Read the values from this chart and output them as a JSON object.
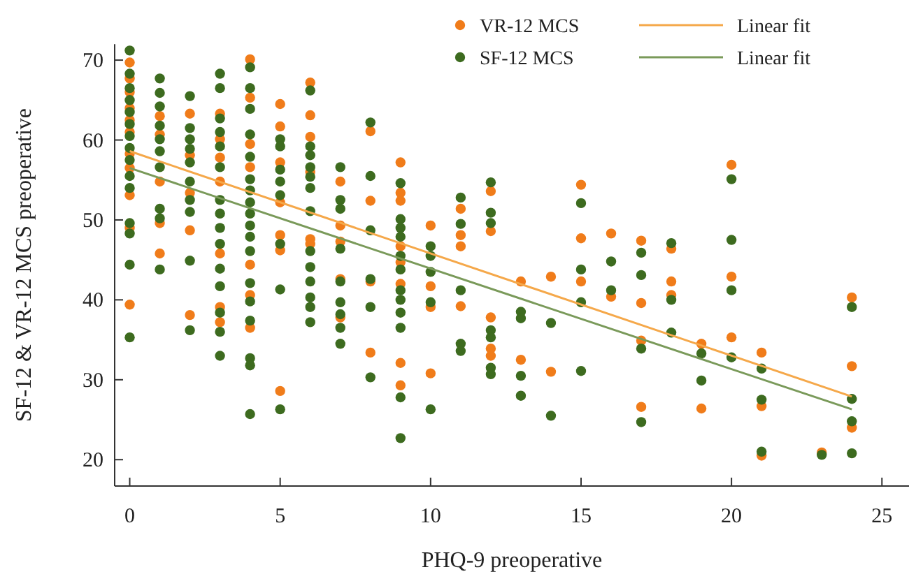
{
  "chart_data": {
    "type": "scatter",
    "xlabel": "PHQ-9 preoperative",
    "ylabel": "SF-12 & VR-12 MCS preoperative",
    "xlim": [
      -0.5,
      25.9
    ],
    "ylim": [
      16.7,
      72
    ],
    "xticks": [
      0,
      5,
      10,
      15,
      20,
      25
    ],
    "yticks": [
      20,
      30,
      40,
      50,
      60,
      70
    ],
    "grid": false,
    "legend": "top right",
    "series": [
      {
        "name": "VR-12 MCS",
        "marker": "circle",
        "color": "#f07c1a",
        "x": [
          0,
          0,
          0,
          0,
          0,
          0,
          0,
          0,
          0,
          0,
          0,
          1,
          1,
          1,
          1,
          1,
          2,
          2,
          2,
          2,
          2,
          3,
          3,
          3,
          3,
          3,
          3,
          3,
          4,
          4,
          4,
          4,
          4,
          4,
          4,
          5,
          5,
          5,
          5,
          5,
          5,
          5,
          6,
          6,
          6,
          6,
          6,
          6,
          7,
          7,
          7,
          7,
          7,
          8,
          8,
          8,
          8,
          9,
          9,
          9,
          9,
          9,
          9,
          9,
          9,
          10,
          10,
          10,
          10,
          11,
          11,
          11,
          11,
          12,
          12,
          12,
          12,
          12,
          13,
          13,
          14,
          14,
          15,
          15,
          15,
          16,
          16,
          17,
          17,
          17,
          17,
          18,
          18,
          18,
          19,
          19,
          20,
          20,
          20,
          21,
          21,
          21,
          23,
          24,
          24,
          24
        ],
        "values": [
          69.7,
          67.7,
          66,
          64,
          62.5,
          61,
          58.3,
          56.5,
          53.1,
          49,
          39.4,
          63,
          60.7,
          54.8,
          49.6,
          45.8,
          63.3,
          58.1,
          53.4,
          48.7,
          38.1,
          63.3,
          60.1,
          57.8,
          54.8,
          45.8,
          39.1,
          37.2,
          70.1,
          65.3,
          59.5,
          56.6,
          44.4,
          40.6,
          36.5,
          64.5,
          61.7,
          57.2,
          52.2,
          48.1,
          46.2,
          28.6,
          67.2,
          63.1,
          60.4,
          56,
          47.6,
          47,
          54.8,
          49.3,
          47.3,
          42.6,
          37.8,
          61.1,
          52.4,
          42.3,
          33.4,
          57.2,
          53.4,
          52.4,
          46.7,
          44.7,
          42,
          32.1,
          29.3,
          49.3,
          41.7,
          39.1,
          30.8,
          51.4,
          48.1,
          46.7,
          39.2,
          53.6,
          48.6,
          37.8,
          33.9,
          33,
          42.3,
          32.5,
          42.9,
          31,
          54.4,
          47.7,
          42.3,
          48.3,
          40.4,
          47.4,
          39.6,
          34.9,
          26.6,
          46.4,
          42.3,
          40.6,
          34.5,
          26.4,
          56.9,
          42.9,
          35.3,
          33.4,
          26.7,
          20.5,
          20.9,
          40.3,
          31.7,
          24
        ]
      },
      {
        "name": "SF-12 MCS",
        "marker": "circle",
        "color": "#3d6b1f",
        "x": [
          0,
          0,
          0,
          0,
          0,
          0,
          0,
          0,
          0,
          0,
          0,
          0,
          0,
          0,
          0,
          1,
          1,
          1,
          1,
          1,
          1,
          1,
          1,
          1,
          1,
          2,
          2,
          2,
          2,
          2,
          2,
          2,
          2,
          2,
          2,
          3,
          3,
          3,
          3,
          3,
          3,
          3,
          3,
          3,
          3,
          3,
          3,
          3,
          3,
          3,
          4,
          4,
          4,
          4,
          4,
          4,
          4,
          4,
          4,
          4,
          4,
          4,
          4,
          4,
          4,
          4,
          4,
          4,
          5,
          5,
          5,
          5,
          5,
          5,
          5,
          5,
          6,
          6,
          6,
          6,
          6,
          6,
          6,
          6,
          6,
          6,
          6,
          6,
          6,
          7,
          7,
          7,
          7,
          7,
          7,
          7,
          7,
          7,
          8,
          8,
          8,
          8,
          8,
          8,
          9,
          9,
          9,
          9,
          9,
          9,
          9,
          9,
          9,
          9,
          9,
          9,
          10,
          10,
          10,
          10,
          10,
          11,
          11,
          11,
          11,
          11,
          12,
          12,
          12,
          12,
          12,
          12,
          12,
          13,
          13,
          13,
          13,
          14,
          14,
          15,
          15,
          15,
          15,
          16,
          16,
          17,
          17,
          17,
          17,
          18,
          18,
          18,
          19,
          19,
          20,
          20,
          20,
          20,
          21,
          21,
          21,
          23,
          24,
          24,
          24,
          24
        ],
        "values": [
          71.2,
          68.3,
          66.5,
          65,
          63.5,
          62,
          60.5,
          59,
          57.5,
          55.5,
          54,
          49.6,
          48.3,
          44.4,
          35.3,
          67.7,
          65.9,
          64.2,
          61.8,
          60.1,
          58.6,
          56.6,
          51.4,
          50.2,
          43.8,
          65.5,
          61.5,
          60.1,
          58.9,
          57.2,
          54.8,
          52.5,
          51,
          44.9,
          36.2,
          68.3,
          66.5,
          62.7,
          61,
          59.2,
          56.6,
          52.5,
          50.8,
          49,
          47,
          43.9,
          41.7,
          38.4,
          36,
          33,
          69.1,
          66.5,
          63.9,
          60.7,
          57.9,
          55.1,
          53.7,
          52.2,
          50.8,
          49.3,
          47.9,
          46.1,
          42.1,
          39.8,
          37.4,
          32.7,
          31.8,
          25.7,
          60.1,
          59.2,
          56.3,
          54.8,
          53.1,
          47,
          41.3,
          26.3,
          66.2,
          59.2,
          58.1,
          56.6,
          55.4,
          54,
          51.1,
          46.1,
          44.1,
          42.3,
          40.3,
          39.1,
          37.2,
          56.6,
          52.5,
          51.4,
          46.4,
          42.3,
          39.7,
          38.2,
          36.5,
          34.5,
          62.2,
          55.5,
          48.7,
          42.6,
          39.1,
          30.3,
          54.6,
          50.1,
          49,
          47.9,
          45.5,
          43.8,
          41.2,
          40,
          38.4,
          36.5,
          27.8,
          22.7,
          46.7,
          45.5,
          43.5,
          39.7,
          26.3,
          52.8,
          49.5,
          41.2,
          34.5,
          33.6,
          54.7,
          50.9,
          49.6,
          36.2,
          35.3,
          31.5,
          30.7,
          38.5,
          37.7,
          30.5,
          28,
          37.1,
          25.5,
          52.1,
          43.8,
          39.7,
          31.1,
          44.8,
          41.2,
          45.9,
          43.1,
          33.9,
          24.7,
          47.1,
          40,
          35.9,
          33.3,
          29.9,
          55.1,
          47.5,
          41.2,
          32.8,
          31.4,
          27.5,
          21,
          20.6,
          39.1,
          27.6,
          24.8,
          20.8
        ]
      },
      {
        "name": "Linear fit",
        "type": "line",
        "marker": "none",
        "color": "#f5a84a",
        "x": [
          0,
          24
        ],
        "values": [
          58.6,
          27.9
        ]
      },
      {
        "name": "Linear fit",
        "type": "line",
        "marker": "none",
        "color": "#7a9a5a",
        "x": [
          0,
          24
        ],
        "values": [
          56.5,
          26.3
        ]
      }
    ]
  }
}
